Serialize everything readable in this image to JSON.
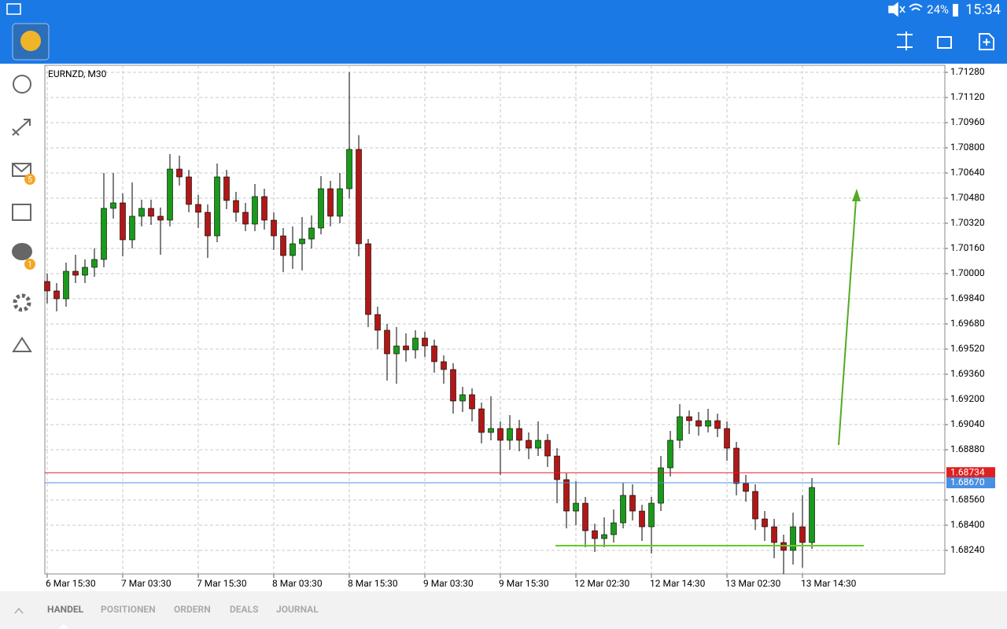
{
  "status_bar": {
    "battery": "24%",
    "time": "15:34"
  },
  "sidebar": {
    "badges": [
      "5",
      "1"
    ]
  },
  "chart_data": {
    "type": "candlestick",
    "title": "EURNZD, M30",
    "open": [
      1.6995,
      1.6989,
      1.6984,
      1.70015,
      1.6999,
      1.7004,
      1.7009,
      1.70415,
      1.7045,
      1.70215,
      1.70365,
      1.70415,
      1.70365,
      1.7034,
      1.70665,
      1.70615,
      1.7044,
      1.7039,
      1.7024,
      1.70615,
      1.70465,
      1.7039,
      1.70315,
      1.7049,
      1.7034,
      1.7024,
      1.70115,
      1.7019,
      1.7022,
      1.7029,
      1.7054,
      1.70365,
      1.7054,
      1.7079,
      1.7019,
      1.6974,
      1.6964,
      1.6949,
      1.6954,
      1.69515,
      1.6959,
      1.6954,
      1.6944,
      1.6939,
      1.6919,
      1.6923,
      1.6914,
      1.6899,
      1.69015,
      1.6894,
      1.69015,
      1.6894,
      1.6889,
      1.6894,
      1.6884,
      1.6869,
      1.6849,
      1.6854,
      1.68365,
      1.68315,
      1.6834,
      1.68415,
      1.6859,
      1.6849,
      1.6839,
      1.6854,
      1.68765,
      1.6894,
      1.6909,
      1.69065,
      1.6903,
      1.69065,
      1.69015,
      1.6889,
      1.68665,
      1.68615,
      1.6844,
      1.6839,
      1.6829,
      1.6824,
      1.6839,
      1.6829
    ],
    "high": [
      1.7,
      1.6994,
      1.7007,
      1.7012,
      1.7009,
      1.7016,
      1.7064,
      1.7064,
      1.7051,
      1.7058,
      1.7047,
      1.7047,
      1.7042,
      1.7076,
      1.7075,
      1.7066,
      1.705,
      1.7044,
      1.707,
      1.7066,
      1.7052,
      1.7045,
      1.7057,
      1.7054,
      1.7039,
      1.7029,
      1.703,
      1.7036,
      1.7037,
      1.7062,
      1.7059,
      1.7064,
      1.7128,
      1.7088,
      1.7022,
      1.6979,
      1.6968,
      1.6966,
      1.6962,
      1.6964,
      1.6963,
      1.6958,
      1.6948,
      1.6943,
      1.6928,
      1.6927,
      1.6918,
      1.6922,
      1.6906,
      1.691,
      1.6907,
      1.6899,
      1.6906,
      1.6898,
      1.6889,
      1.6873,
      1.6868,
      1.6858,
      1.6841,
      1.6845,
      1.685,
      1.6867,
      1.6866,
      1.6853,
      1.6858,
      1.6884,
      1.69,
      1.6917,
      1.6913,
      1.6912,
      1.6914,
      1.6911,
      1.6906,
      1.6893,
      1.6872,
      1.6866,
      1.6849,
      1.6844,
      1.6834,
      1.6848,
      1.6859,
      1.687
    ],
    "low": [
      1.6981,
      1.6976,
      1.6979,
      1.6994,
      1.6994,
      1.6998,
      1.7004,
      1.7035,
      1.7011,
      1.7016,
      1.703,
      1.7031,
      1.7012,
      1.703,
      1.7056,
      1.7039,
      1.7029,
      1.701,
      1.702,
      1.7041,
      1.7033,
      1.7027,
      1.7027,
      1.7028,
      1.7015,
      1.7001,
      1.7003,
      1.7002,
      1.7016,
      1.7025,
      1.703,
      1.7032,
      1.7048,
      1.7011,
      1.6966,
      1.6952,
      1.6932,
      1.693,
      1.6944,
      1.6946,
      1.6947,
      1.6937,
      1.693,
      1.6911,
      1.6912,
      1.6906,
      1.6892,
      1.6894,
      1.6872,
      1.6888,
      1.6887,
      1.6882,
      1.6884,
      1.6877,
      1.6854,
      1.6838,
      1.684,
      1.6826,
      1.6823,
      1.6826,
      1.6829,
      1.6838,
      1.6843,
      1.683,
      1.6822,
      1.6849,
      1.6871,
      1.6889,
      1.6898,
      1.6897,
      1.6899,
      1.6896,
      1.6881,
      1.6859,
      1.6855,
      1.6837,
      1.683,
      1.6819,
      1.6809,
      1.6815,
      1.6813,
      1.6825
    ],
    "close": [
      1.6989,
      1.6984,
      1.70015,
      1.6999,
      1.7004,
      1.7009,
      1.70415,
      1.7045,
      1.70215,
      1.70365,
      1.70415,
      1.70365,
      1.7034,
      1.70665,
      1.70615,
      1.7044,
      1.7039,
      1.7024,
      1.70615,
      1.70465,
      1.7039,
      1.70315,
      1.7049,
      1.7034,
      1.7024,
      1.70115,
      1.7019,
      1.7022,
      1.7029,
      1.7054,
      1.70365,
      1.7054,
      1.7079,
      1.7019,
      1.6974,
      1.6964,
      1.6949,
      1.6954,
      1.69515,
      1.6959,
      1.6954,
      1.6944,
      1.6939,
      1.6919,
      1.6923,
      1.6914,
      1.6899,
      1.69015,
      1.6894,
      1.69015,
      1.6894,
      1.6889,
      1.6894,
      1.6884,
      1.6869,
      1.6849,
      1.6854,
      1.68365,
      1.68315,
      1.6834,
      1.68415,
      1.6859,
      1.6849,
      1.6839,
      1.6854,
      1.68765,
      1.6894,
      1.6909,
      1.69065,
      1.6903,
      1.69065,
      1.69015,
      1.6889,
      1.68665,
      1.68615,
      1.6844,
      1.6839,
      1.6829,
      1.6824,
      1.6839,
      1.6829,
      1.6864
    ],
    "up_color": "#1a9a1a",
    "down_color": "#b01818",
    "xlim": [
      -0.25,
      95.08
    ],
    "xticks": [
      {
        "value": 0,
        "label": "6 Mar 15:30"
      },
      {
        "value": 8,
        "label": "7 Mar 03:30"
      },
      {
        "value": 16,
        "label": "7 Mar 15:30"
      },
      {
        "value": 24,
        "label": "8 Mar 03:30"
      },
      {
        "value": 32,
        "label": "8 Mar 15:30"
      },
      {
        "value": 40,
        "label": "9 Mar 03:30"
      },
      {
        "value": 48,
        "label": "9 Mar 15:30"
      },
      {
        "value": 56,
        "label": "12 Mar 02:30"
      },
      {
        "value": 64,
        "label": "12 Mar 14:30"
      },
      {
        "value": 72,
        "label": "13 Mar 02:30"
      },
      {
        "value": 80,
        "label": "13 Mar 14:30"
      }
    ],
    "ylim": [
      1.6809,
      1.71325
    ],
    "yticks": [
      {
        "value": 1.7128,
        "label": "1.71280"
      },
      {
        "value": 1.7112,
        "label": "1.71120"
      },
      {
        "value": 1.7096,
        "label": "1.70960"
      },
      {
        "value": 1.708,
        "label": "1.70800"
      },
      {
        "value": 1.7064,
        "label": "1.70640"
      },
      {
        "value": 1.7048,
        "label": "1.70480"
      },
      {
        "value": 1.7032,
        "label": "1.70320"
      },
      {
        "value": 1.7016,
        "label": "1.70160"
      },
      {
        "value": 1.7,
        "label": "1.70000"
      },
      {
        "value": 1.6984,
        "label": "1.69840"
      },
      {
        "value": 1.6968,
        "label": "1.69680"
      },
      {
        "value": 1.6952,
        "label": "1.69520"
      },
      {
        "value": 1.6936,
        "label": "1.69360"
      },
      {
        "value": 1.692,
        "label": "1.69200"
      },
      {
        "value": 1.6904,
        "label": "1.69040"
      },
      {
        "value": 1.6888,
        "label": "1.68880"
      },
      {
        "value": 1.6856,
        "label": "1.68560"
      },
      {
        "value": 1.684,
        "label": "1.68400"
      },
      {
        "value": 1.6824,
        "label": "1.68240"
      }
    ],
    "grid": true,
    "price_lines": [
      {
        "value": 1.68734,
        "label": "1.68734",
        "color": "#e02020"
      },
      {
        "value": 1.6867,
        "label": "1.68670",
        "color": "#4a90e2"
      }
    ]
  },
  "tabs": [
    "HANDEL",
    "POSITIONEN",
    "ORDERN",
    "DEALS",
    "JOURNAL"
  ]
}
